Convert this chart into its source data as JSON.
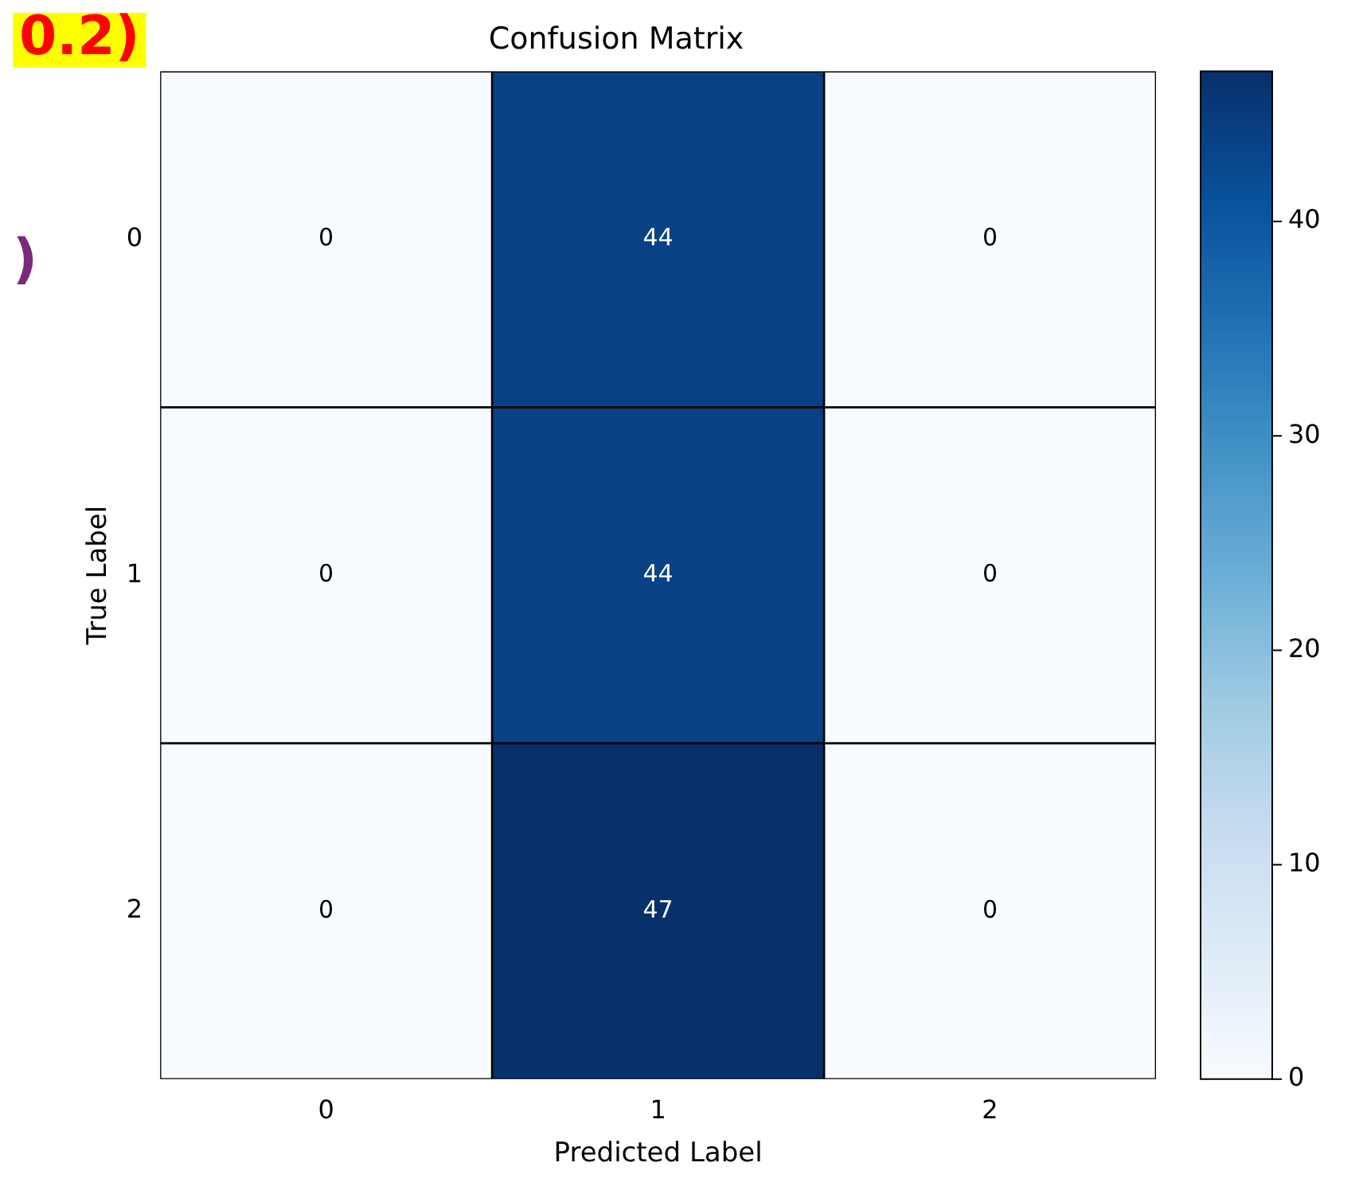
{
  "chart_data": {
    "type": "heatmap",
    "title": "Confusion Matrix",
    "xlabel": "Predicted Label",
    "ylabel": "True Label",
    "categories": [
      "0",
      "1",
      "2"
    ],
    "y_categories": [
      "0",
      "1",
      "2"
    ],
    "cells": [
      [
        0,
        44,
        0
      ],
      [
        0,
        44,
        0
      ],
      [
        0,
        47,
        0
      ]
    ],
    "data_labels": true,
    "clim": [
      0,
      47
    ],
    "cticks": [
      0,
      10,
      20,
      30,
      40
    ],
    "annotations": [
      "0.2)",
      ")"
    ]
  }
}
